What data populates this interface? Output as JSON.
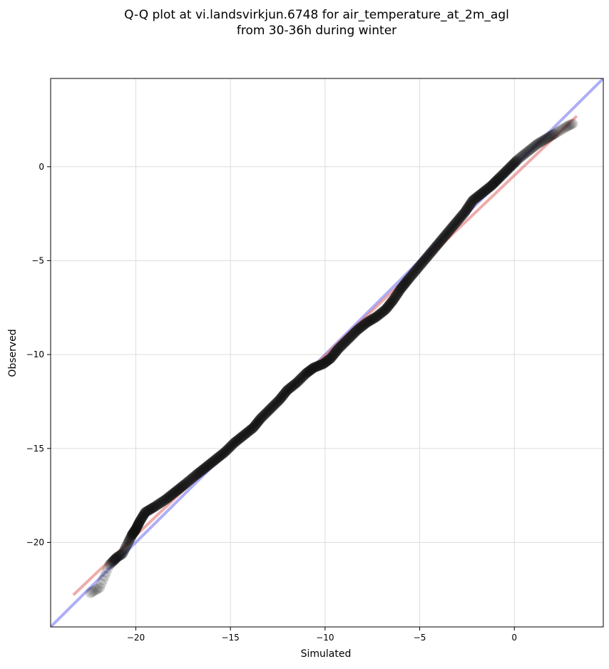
{
  "chart_data": {
    "type": "scatter",
    "title": [
      "Q-Q plot at vi.landsvirkjun.6748 for air_temperature_at_2m_agl",
      "from 30-36h during winter"
    ],
    "xlabel": "Simulated",
    "ylabel": "Observed",
    "xlim": [
      -24.5,
      4.7
    ],
    "ylim": [
      -24.5,
      4.7
    ],
    "xticks": [
      -20,
      -15,
      -10,
      -5,
      0
    ],
    "yticks": [
      0,
      -5,
      -10,
      -15,
      -20
    ],
    "xtick_labels": [
      "−20",
      "−15",
      "−10",
      "−5",
      "0"
    ],
    "ytick_labels": [
      "0",
      "−5",
      "−10",
      "−15",
      "−20"
    ],
    "grid": true,
    "colors": {
      "points": "#111111",
      "identity_line": "#6b6bf0",
      "fit_line": "#e06666",
      "grid": "#dddddd"
    },
    "quantile_points": [
      [
        -22.4,
        -22.7
      ],
      [
        -21.9,
        -22.4
      ],
      [
        -21.4,
        -21.2
      ],
      [
        -21.2,
        -21.0
      ],
      [
        -21.0,
        -20.8
      ],
      [
        -20.7,
        -20.6
      ],
      [
        -20.4,
        -20.0
      ],
      [
        -20.2,
        -19.6
      ],
      [
        -20.0,
        -19.3
      ],
      [
        -19.8,
        -18.9
      ],
      [
        -19.5,
        -18.4
      ],
      [
        -19.0,
        -18.1
      ],
      [
        -18.4,
        -17.7
      ],
      [
        -17.9,
        -17.3
      ],
      [
        -17.4,
        -16.9
      ],
      [
        -16.8,
        -16.4
      ],
      [
        -16.3,
        -16.0
      ],
      [
        -15.8,
        -15.6
      ],
      [
        -15.3,
        -15.2
      ],
      [
        -14.8,
        -14.7
      ],
      [
        -14.3,
        -14.3
      ],
      [
        -13.8,
        -13.9
      ],
      [
        -13.4,
        -13.4
      ],
      [
        -12.9,
        -12.9
      ],
      [
        -12.4,
        -12.4
      ],
      [
        -12.0,
        -11.9
      ],
      [
        -11.5,
        -11.5
      ],
      [
        -11.0,
        -11.0
      ],
      [
        -10.6,
        -10.7
      ],
      [
        -10.1,
        -10.5
      ],
      [
        -9.7,
        -10.2
      ],
      [
        -9.3,
        -9.7
      ],
      [
        -8.8,
        -9.2
      ],
      [
        -8.3,
        -8.7
      ],
      [
        -7.8,
        -8.3
      ],
      [
        -7.3,
        -8.0
      ],
      [
        -6.8,
        -7.6
      ],
      [
        -6.4,
        -7.1
      ],
      [
        -6.0,
        -6.5
      ],
      [
        -5.6,
        -6.0
      ],
      [
        -5.1,
        -5.4
      ],
      [
        -4.6,
        -4.8
      ],
      [
        -4.1,
        -4.2
      ],
      [
        -3.6,
        -3.6
      ],
      [
        -3.1,
        -3.0
      ],
      [
        -2.6,
        -2.4
      ],
      [
        -2.2,
        -1.8
      ],
      [
        -1.7,
        -1.4
      ],
      [
        -1.2,
        -1.0
      ],
      [
        -0.8,
        -0.6
      ],
      [
        -0.3,
        -0.1
      ],
      [
        0.2,
        0.4
      ],
      [
        0.7,
        0.8
      ],
      [
        1.2,
        1.2
      ],
      [
        1.7,
        1.5
      ],
      [
        2.2,
        1.8
      ],
      [
        2.7,
        2.1
      ],
      [
        3.1,
        2.3
      ]
    ],
    "reference_lines": [
      {
        "kind": "identity",
        "from": [
          -24.5,
          -24.5
        ],
        "to": [
          4.7,
          4.7
        ]
      },
      {
        "kind": "fit",
        "from": [
          -23.3,
          -22.8
        ],
        "to": [
          3.3,
          2.7
        ]
      }
    ]
  }
}
